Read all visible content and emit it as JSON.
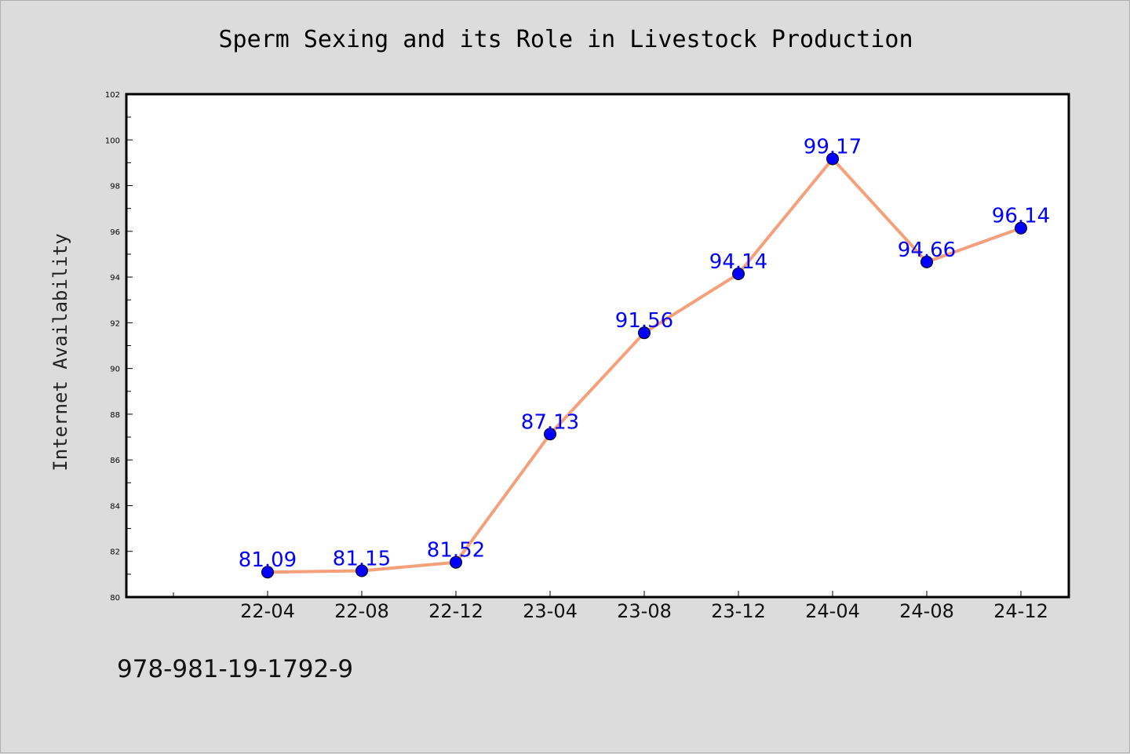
{
  "chart_data": {
    "type": "line",
    "title": "Sperm Sexing and its Role in Livestock Production",
    "xlabel": "",
    "ylabel": "Internet Availability",
    "categories": [
      "22-04",
      "22-08",
      "22-12",
      "23-04",
      "23-08",
      "23-12",
      "24-04",
      "24-08",
      "24-12"
    ],
    "series": [
      {
        "values": [
          81.09,
          81.15,
          81.52,
          87.13,
          91.56,
          94.14,
          99.17,
          94.66,
          96.14
        ],
        "labels": [
          "81.09",
          "81.15",
          "81.52",
          "87.13",
          "91.56",
          "94.14",
          "99.17",
          "94.66",
          "96.14"
        ],
        "line_color": "#f4a07a",
        "marker_color": "#0000ff"
      }
    ],
    "ylim": [
      80,
      102
    ],
    "yticks": [
      "80",
      "82",
      "84",
      "86",
      "88",
      "90",
      "92",
      "94",
      "96",
      "98",
      "100",
      "102"
    ],
    "grid": false,
    "legend": "none"
  },
  "footer": {
    "isbn": "978-981-19-1792-9"
  },
  "colors": {
    "background": "#dcdcdc",
    "plot_background": "#ffffff",
    "label_color": "#0000ff",
    "line_color": "#f4a07a"
  }
}
